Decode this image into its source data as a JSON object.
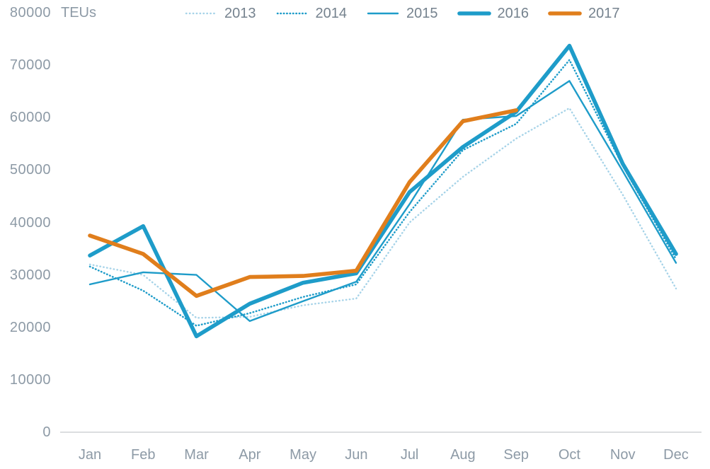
{
  "chart_data": {
    "type": "line",
    "title": "",
    "unit_label": "TEUs",
    "xlabel": "",
    "ylabel": "TEUs",
    "ylim": [
      0,
      80000
    ],
    "y_ticks": [
      0,
      10000,
      20000,
      30000,
      40000,
      50000,
      60000,
      70000,
      80000
    ],
    "grid": false,
    "legend_position": "top",
    "axis_line_color": "#dcdee0",
    "tick_text_color": "#8d9aa6",
    "legend_text_color": "#75828e",
    "categories": [
      "Jan",
      "Feb",
      "Mar",
      "Apr",
      "May",
      "Jun",
      "Jul",
      "Aug",
      "Sep",
      "Oct",
      "Nov",
      "Dec"
    ],
    "series": [
      {
        "name": "2013",
        "style": "dotted",
        "color": "#a6d3e8",
        "width": 2.4,
        "dash": "0.5 4.4",
        "values": [
          32000,
          30000,
          21800,
          22000,
          24200,
          25500,
          40000,
          48700,
          56000,
          61800,
          45300,
          27400
        ]
      },
      {
        "name": "2014",
        "style": "dotted",
        "color": "#1e9cc9",
        "width": 2.5,
        "dash": "0.5 3.9",
        "values": [
          31600,
          27000,
          20300,
          22700,
          25800,
          28200,
          42000,
          53800,
          58800,
          71000,
          50800,
          33000
        ]
      },
      {
        "name": "2015",
        "style": "solid",
        "color": "#1e9cc9",
        "width": 2.4,
        "dash": "",
        "values": [
          28200,
          30500,
          30000,
          21200,
          25000,
          28700,
          43500,
          59600,
          60300,
          67000,
          49800,
          32300
        ]
      },
      {
        "name": "2016",
        "style": "solid",
        "color": "#1e9cc9",
        "width": 5.6,
        "dash": "",
        "values": [
          33700,
          39300,
          18300,
          24500,
          28500,
          30300,
          45800,
          54400,
          61100,
          73700,
          51200,
          34000
        ]
      },
      {
        "name": "2017",
        "style": "solid",
        "color": "#e07e1c",
        "width": 5.6,
        "dash": "",
        "values": [
          37500,
          34000,
          26000,
          29600,
          29800,
          30800,
          47700,
          59300,
          61400,
          null,
          null,
          null
        ]
      }
    ]
  }
}
